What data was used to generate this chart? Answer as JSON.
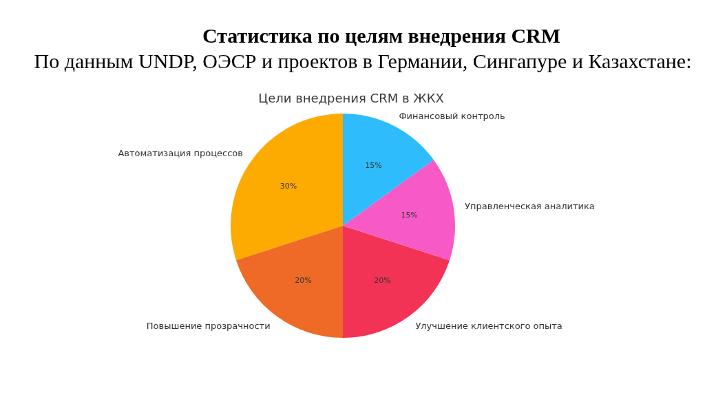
{
  "chart_data": {
    "type": "pie",
    "title": "Статистика по целям внедрения CRM",
    "subtitle": "По данным UNDP, ОЭСР и проектов в Германии, Сингапуре и Казахстане:",
    "annotations": [
      "Цели внедрения CRM в ЖКХ"
    ],
    "categories": [
      "Автоматизация процессов",
      "Повышение прозрачности",
      "Улучшение клиентского опыта",
      "Управленческая аналитика",
      "Финансовый контроль"
    ],
    "values": [
      30,
      20,
      20,
      15,
      15
    ],
    "colors": [
      "#fdab01",
      "#ef6a26",
      "#f23355",
      "#f75ac6",
      "#2ebcfc"
    ],
    "value_labels": [
      "30%",
      "20%",
      "20%",
      "15%",
      "15%"
    ]
  }
}
